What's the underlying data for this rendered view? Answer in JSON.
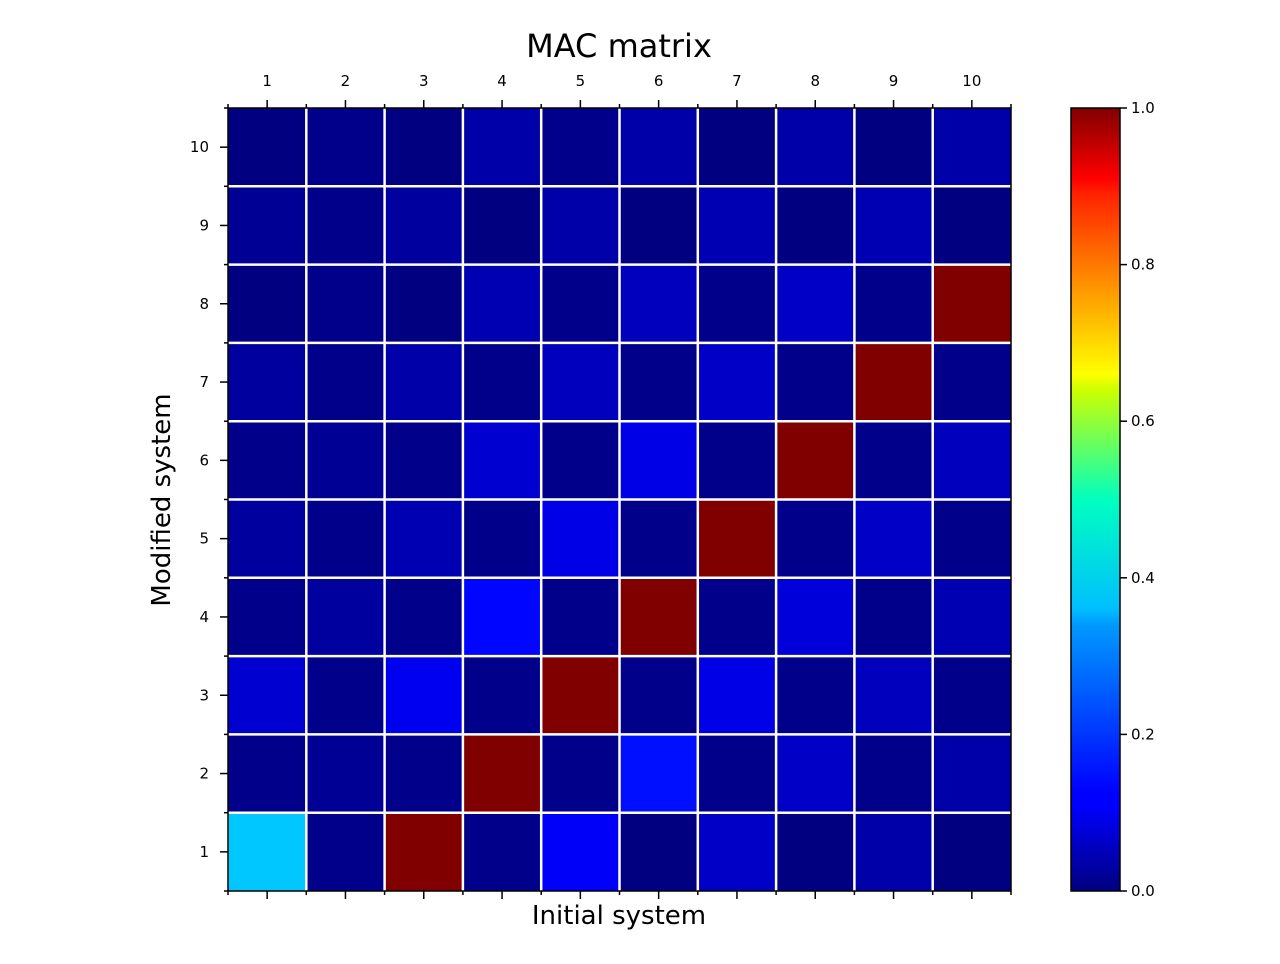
{
  "chart_data": {
    "type": "heatmap",
    "title": "MAC matrix",
    "xlabel": "Initial system",
    "ylabel": "Modified system",
    "x_categories": [
      "1",
      "2",
      "3",
      "4",
      "5",
      "6",
      "7",
      "8",
      "9",
      "10"
    ],
    "y_categories": [
      "1",
      "2",
      "3",
      "4",
      "5",
      "6",
      "7",
      "8",
      "9",
      "10"
    ],
    "value_range": [
      0,
      1
    ],
    "colormap": "jet",
    "grid": true,
    "grid_color": "#ffffff",
    "colorbar": {
      "position": "right",
      "ticks": [
        0,
        0.2,
        0.4,
        0.6,
        0.8,
        1
      ],
      "tick_labels": [
        "0.0",
        "0.2",
        "0.4",
        "0.6",
        "0.8",
        "1.0"
      ]
    },
    "values": [
      [
        0.32,
        0.01,
        1.0,
        0.01,
        0.12,
        0.0,
        0.07,
        0.0,
        0.04,
        0.0
      ],
      [
        0.01,
        0.02,
        0.01,
        1.0,
        0.01,
        0.14,
        0.01,
        0.07,
        0.01,
        0.04
      ],
      [
        0.08,
        0.01,
        0.11,
        0.01,
        1.0,
        0.01,
        0.1,
        0.01,
        0.06,
        0.01
      ],
      [
        0.01,
        0.03,
        0.01,
        0.13,
        0.01,
        1.0,
        0.01,
        0.09,
        0.01,
        0.05
      ],
      [
        0.03,
        0.01,
        0.05,
        0.01,
        0.1,
        0.01,
        1.0,
        0.01,
        0.07,
        0.01
      ],
      [
        0.01,
        0.02,
        0.01,
        0.08,
        0.01,
        0.1,
        0.01,
        1.0,
        0.01,
        0.06
      ],
      [
        0.03,
        0.01,
        0.04,
        0.01,
        0.06,
        0.01,
        0.07,
        0.01,
        1.0,
        0.01
      ],
      [
        0.0,
        0.01,
        0.0,
        0.05,
        0.01,
        0.06,
        0.01,
        0.07,
        0.01,
        1.0
      ],
      [
        0.02,
        0.01,
        0.03,
        0.0,
        0.04,
        0.0,
        0.05,
        0.0,
        0.05,
        0.0
      ],
      [
        0.0,
        0.01,
        0.0,
        0.04,
        0.01,
        0.04,
        0.0,
        0.04,
        0.0,
        0.04
      ]
    ]
  }
}
